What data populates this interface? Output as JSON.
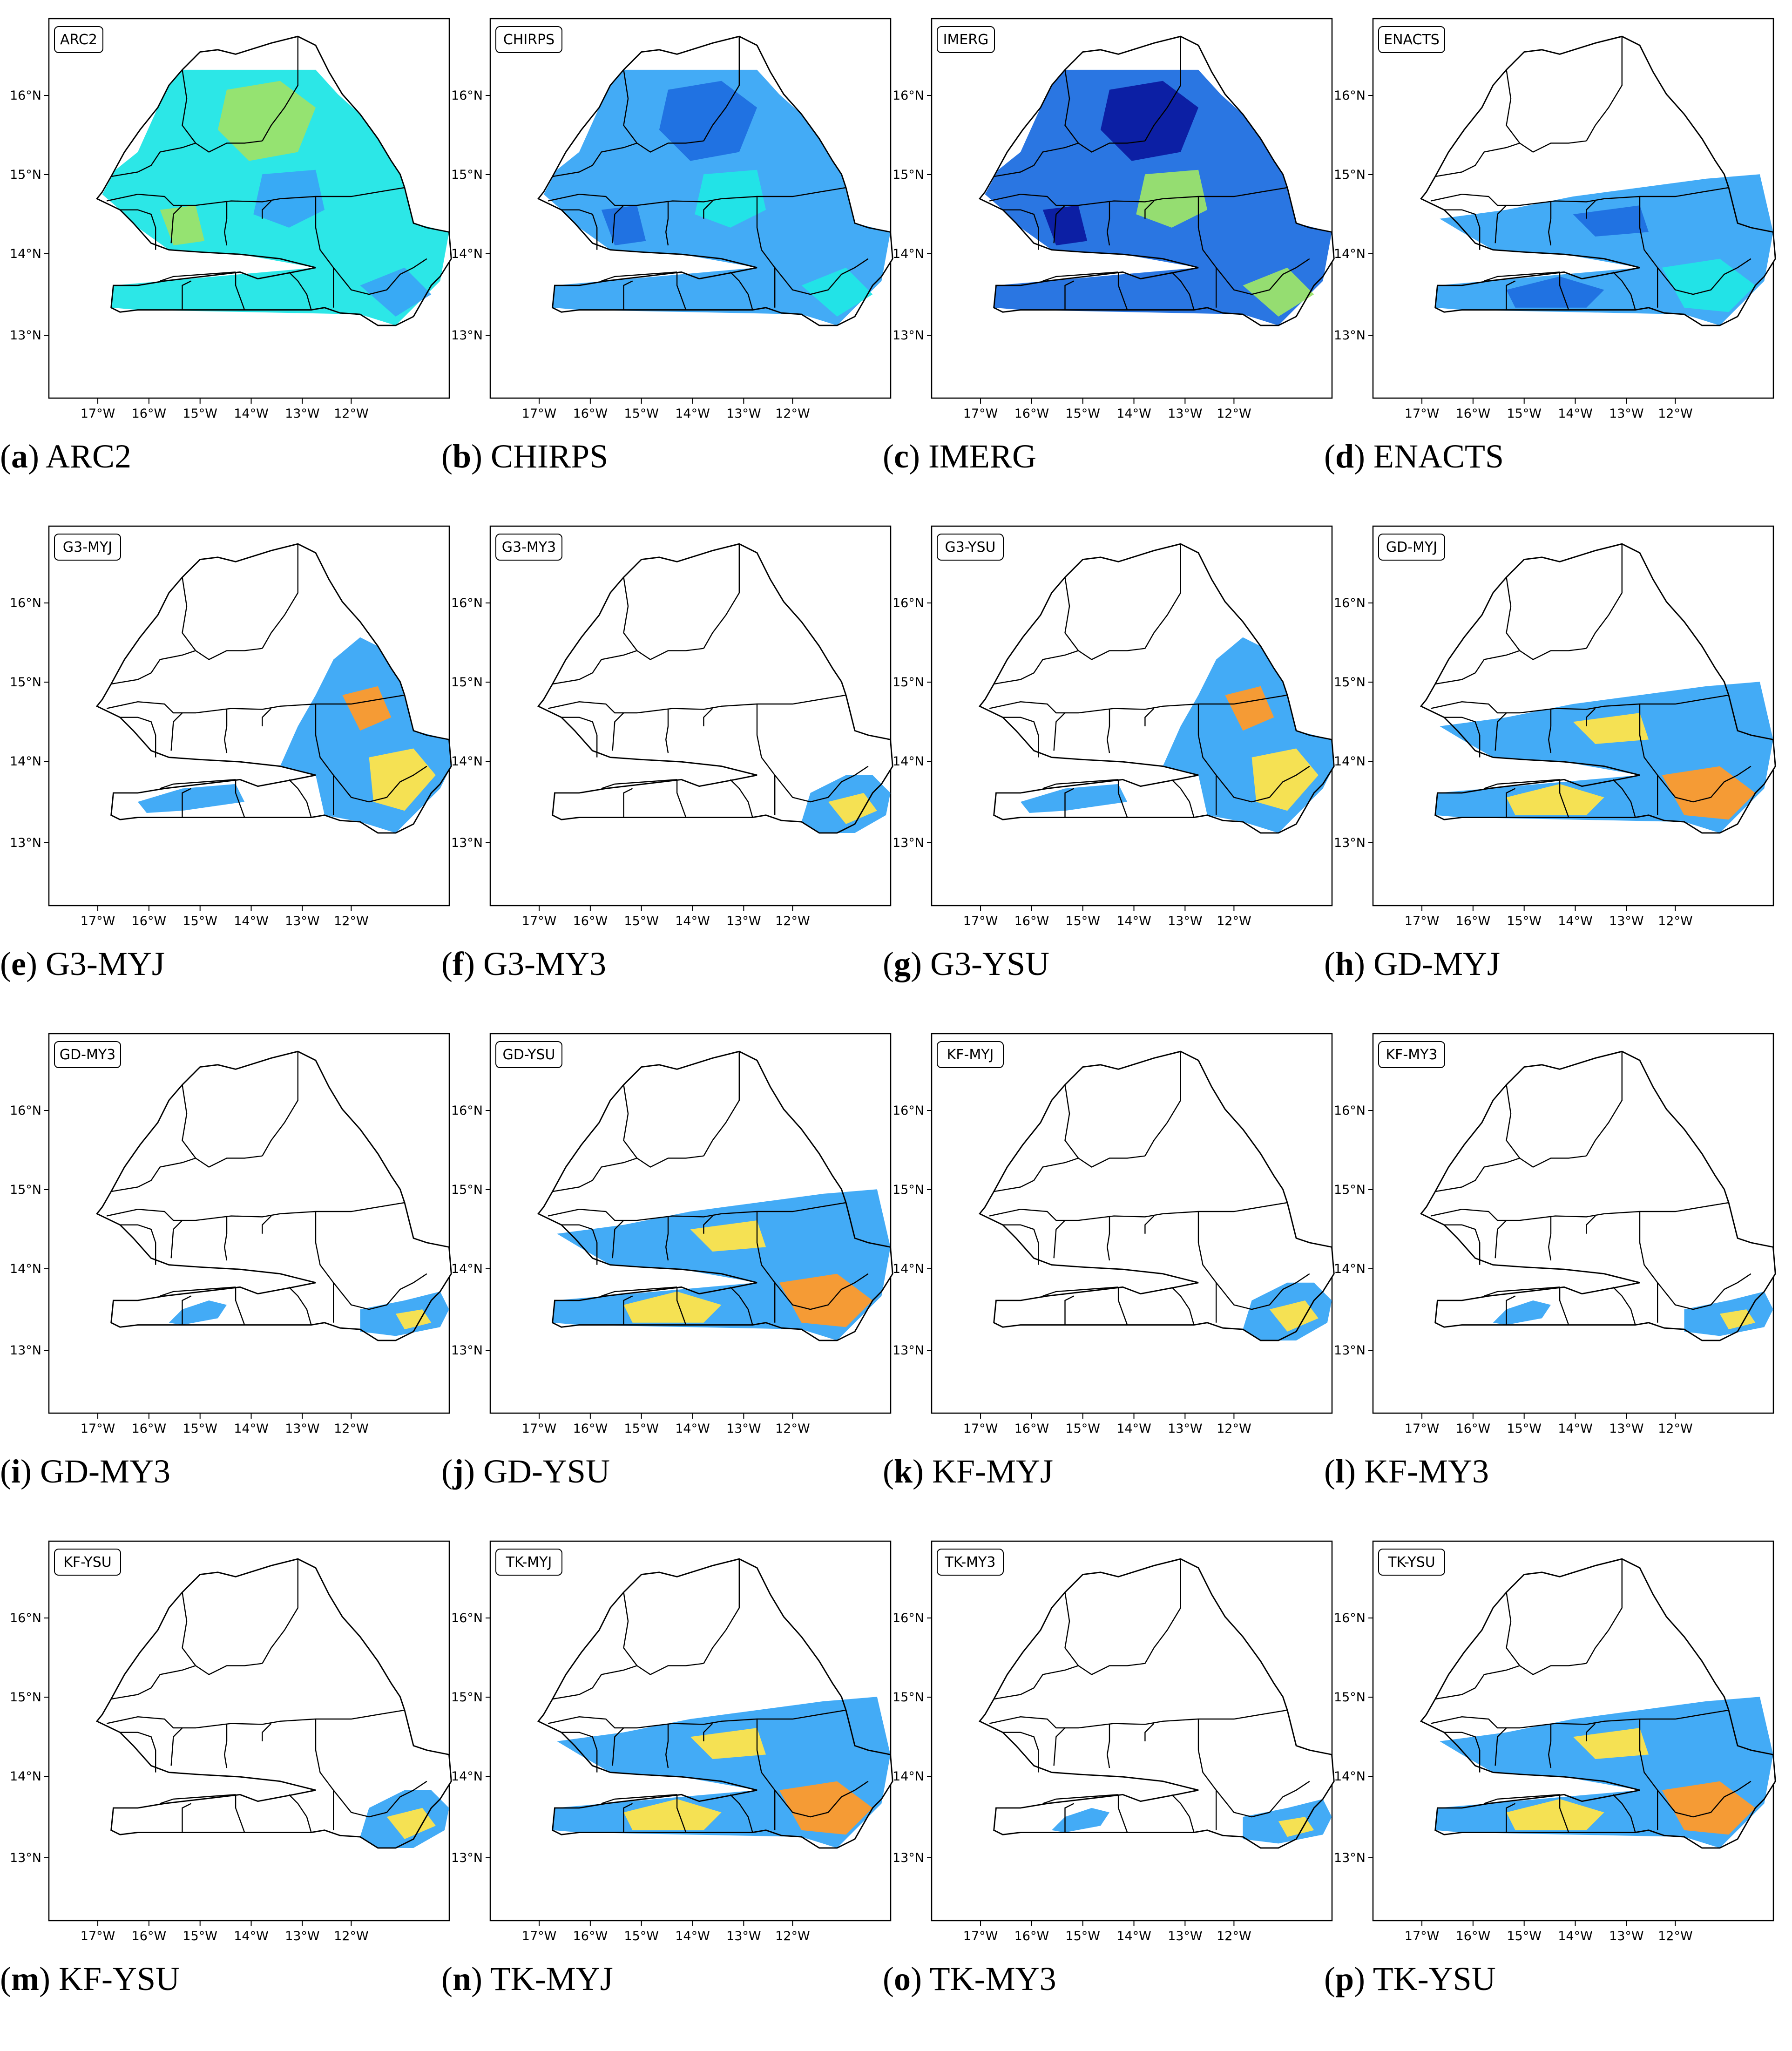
{
  "figure": {
    "lat_ticks": [
      "16°N",
      "15°N",
      "14°N",
      "13°N"
    ],
    "lon_ticks": [
      "17°W",
      "16°W",
      "15°W",
      "14°W",
      "13°W",
      "12°W"
    ],
    "panels": [
      {
        "letter": "a",
        "label": "ARC2",
        "tag": "ARC2",
        "coverage": "full",
        "palette": "cyan"
      },
      {
        "letter": "b",
        "label": "CHIRPS",
        "tag": "CHIRPS",
        "coverage": "full",
        "palette": "blue"
      },
      {
        "letter": "c",
        "label": "IMERG",
        "tag": "IMERG",
        "coverage": "full",
        "palette": "dark"
      },
      {
        "letter": "d",
        "label": "ENACTS",
        "tag": "ENACTS",
        "coverage": "south",
        "palette": "blue"
      },
      {
        "letter": "e",
        "label": "G3-MYJ",
        "tag": "G3-MYJ",
        "coverage": "east",
        "palette": "hot"
      },
      {
        "letter": "f",
        "label": "G3-MY3",
        "tag": "G3-MY3",
        "coverage": "corner",
        "palette": "hot"
      },
      {
        "letter": "g",
        "label": "G3-YSU",
        "tag": "G3-YSU",
        "coverage": "east",
        "palette": "hot"
      },
      {
        "letter": "h",
        "label": "GD-MYJ",
        "tag": "GD-MYJ",
        "coverage": "south",
        "palette": "hot"
      },
      {
        "letter": "i",
        "label": "GD-MY3",
        "tag": "GD-MY3",
        "coverage": "strip",
        "palette": "hot"
      },
      {
        "letter": "j",
        "label": "GD-YSU",
        "tag": "GD-YSU",
        "coverage": "south",
        "palette": "hot"
      },
      {
        "letter": "k",
        "label": "KF-MYJ",
        "tag": "KF-MYJ",
        "coverage": "corner",
        "palette": "hot"
      },
      {
        "letter": "l",
        "label": "KF-MY3",
        "tag": "KF-MY3",
        "coverage": "strip",
        "palette": "hot"
      },
      {
        "letter": "m",
        "label": "KF-YSU",
        "tag": "KF-YSU",
        "coverage": "corner",
        "palette": "hot"
      },
      {
        "letter": "n",
        "label": "TK-MYJ",
        "tag": "TK-MYJ",
        "coverage": "south",
        "palette": "hot"
      },
      {
        "letter": "o",
        "label": "TK-MY3",
        "tag": "TK-MY3",
        "coverage": "strip",
        "palette": "hot"
      },
      {
        "letter": "p",
        "label": "TK-YSU",
        "tag": "TK-YSU",
        "coverage": "south",
        "palette": "hot"
      }
    ],
    "colors": {
      "cyan": "#21e6e6",
      "light_blue": "#39a6f5",
      "blue": "#1f6fe0",
      "dark_blue": "#0b1aa0",
      "green": "#9be36a",
      "yellow": "#ffe44a",
      "orange": "#ff9a2a",
      "border": "#000000"
    }
  }
}
